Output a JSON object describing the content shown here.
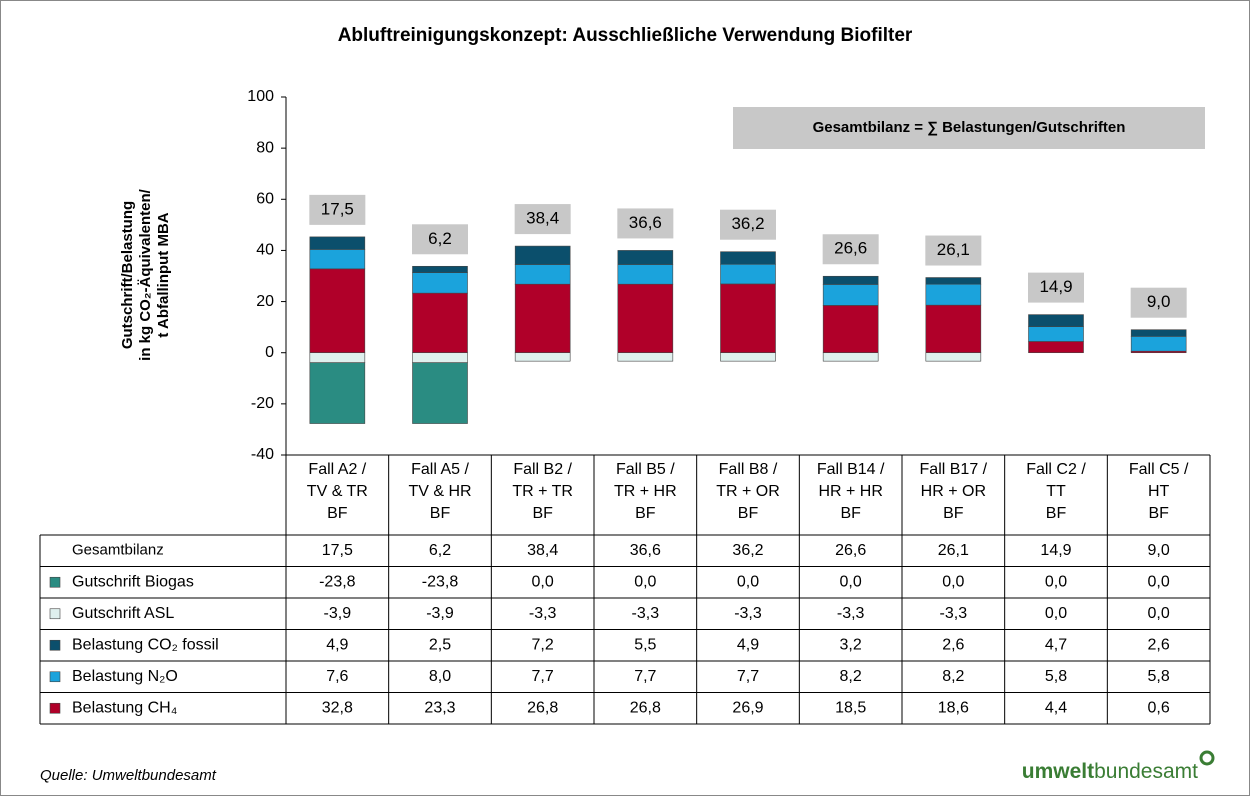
{
  "chart_data": {
    "type": "stacked_bar",
    "title": "Abluftreinigungskonzept: Ausschließliche Verwendung Biofilter",
    "y_label": [
      "Gutschrift/Belastung",
      "in kg CO₂-Äquivalenten/",
      "t Abfallinput MBA"
    ],
    "annotation": "Gesamtbilanz = ∑ Belastungen/Gutschriften",
    "categories": [
      [
        "Fall A2 /",
        "TV & TR",
        "BF"
      ],
      [
        "Fall A5 /",
        "TV & HR",
        "BF"
      ],
      [
        "Fall B2 /",
        "TR + TR",
        "BF"
      ],
      [
        "Fall B5 /",
        "TR + HR",
        "BF"
      ],
      [
        "Fall B8 /",
        "TR + OR",
        "BF"
      ],
      [
        "Fall B14 /",
        "HR + HR",
        "BF"
      ],
      [
        "Fall B17 /",
        "HR + OR",
        "BF"
      ],
      [
        "Fall C2 /",
        "TT",
        "BF"
      ],
      [
        "Fall C5 /",
        "HT",
        "BF"
      ]
    ],
    "total": {
      "name": "Gesamtbilanz",
      "values": [
        17.5,
        6.2,
        38.4,
        36.6,
        36.2,
        26.6,
        26.1,
        14.9,
        9.0
      ],
      "value_labels": [
        "17,5",
        "6,2",
        "38,4",
        "36,6",
        "36,2",
        "26,6",
        "26,1",
        "14,9",
        "9,0"
      ]
    },
    "series": [
      {
        "name": "Gutschrift Biogas",
        "color": "#2a8c82",
        "values": [
          -23.8,
          -23.8,
          0.0,
          0.0,
          0.0,
          0.0,
          0.0,
          0.0,
          0.0
        ],
        "value_labels": [
          "-23,8",
          "-23,8",
          "0,0",
          "0,0",
          "0,0",
          "0,0",
          "0,0",
          "0,0",
          "0,0"
        ]
      },
      {
        "name": "Gutschrift ASL",
        "color": "#dff0ee",
        "values": [
          -3.9,
          -3.9,
          -3.3,
          -3.3,
          -3.3,
          -3.3,
          -3.3,
          0.0,
          0.0
        ],
        "value_labels": [
          "-3,9",
          "-3,9",
          "-3,3",
          "-3,3",
          "-3,3",
          "-3,3",
          "-3,3",
          "0,0",
          "0,0"
        ]
      },
      {
        "name": "Belastung CO₂ fossil",
        "color": "#0b4f6c",
        "values": [
          4.9,
          2.5,
          7.2,
          5.5,
          4.9,
          3.2,
          2.6,
          4.7,
          2.6
        ],
        "value_labels": [
          "4,9",
          "2,5",
          "7,2",
          "5,5",
          "4,9",
          "3,2",
          "2,6",
          "4,7",
          "2,6"
        ]
      },
      {
        "name": "Belastung N₂O",
        "color": "#1ba3dc",
        "values": [
          7.6,
          8.0,
          7.7,
          7.7,
          7.7,
          8.2,
          8.2,
          5.8,
          5.8
        ],
        "value_labels": [
          "7,6",
          "8,0",
          "7,7",
          "7,7",
          "7,7",
          "8,2",
          "8,2",
          "5,8",
          "5,8"
        ]
      },
      {
        "name": "Belastung CH₄",
        "color": "#b00029",
        "values": [
          32.8,
          23.3,
          26.8,
          26.8,
          26.9,
          18.5,
          18.6,
          4.4,
          0.6
        ],
        "value_labels": [
          "32,8",
          "23,3",
          "26,8",
          "26,8",
          "26,9",
          "18,5",
          "18,6",
          "4,4",
          "0,6"
        ]
      }
    ],
    "ylim": [
      -40,
      100
    ],
    "yticks": [
      -40,
      -20,
      0,
      20,
      40,
      60,
      80,
      100
    ],
    "grid": false,
    "source": "Quelle: Umweltbundesamt",
    "logo": [
      "umwelt",
      "bundesamt"
    ]
  }
}
